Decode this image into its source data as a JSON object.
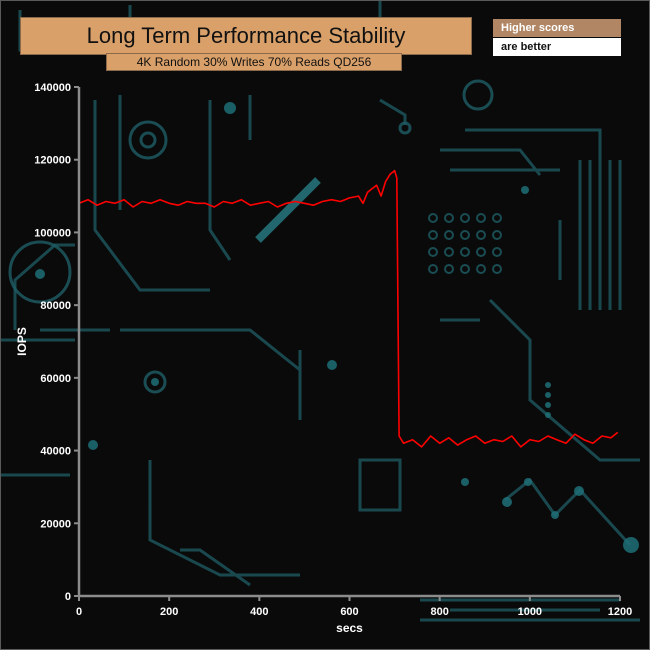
{
  "chart_data": {
    "type": "line",
    "title": "Long Term Performance Stability",
    "subtitle": "4K Random 30% Writes 70% Reads QD256",
    "xlabel": "secs",
    "ylabel": "IOPS",
    "xlim": [
      0,
      1200
    ],
    "ylim": [
      0,
      140000
    ],
    "x_ticks": [
      0,
      200,
      400,
      600,
      800,
      1000,
      1200
    ],
    "y_ticks": [
      0,
      20000,
      40000,
      60000,
      80000,
      100000,
      120000,
      140000
    ],
    "x_tick_labels": [
      "0",
      "200",
      "400",
      "600",
      "800",
      "1000",
      "1200"
    ],
    "y_tick_labels": [
      "0",
      "20000",
      "40000",
      "60000",
      "80000",
      "100000",
      "120000",
      "140000"
    ],
    "series": [
      {
        "color": "#ff0000",
        "x": [
          0,
          20,
          40,
          60,
          80,
          100,
          120,
          140,
          160,
          180,
          200,
          220,
          240,
          260,
          280,
          300,
          320,
          340,
          360,
          380,
          400,
          420,
          440,
          460,
          480,
          500,
          520,
          540,
          560,
          580,
          600,
          620,
          630,
          640,
          650,
          660,
          670,
          680,
          690,
          700,
          705,
          710,
          720,
          740,
          760,
          780,
          800,
          820,
          840,
          860,
          880,
          900,
          920,
          940,
          960,
          980,
          1000,
          1020,
          1040,
          1060,
          1080,
          1100,
          1120,
          1140,
          1160,
          1180,
          1195
        ],
        "values": [
          108000,
          109000,
          107500,
          108500,
          108000,
          109000,
          107000,
          108500,
          108000,
          109000,
          108000,
          107500,
          108500,
          108000,
          108000,
          107000,
          108500,
          108000,
          109000,
          107500,
          108000,
          108500,
          107000,
          108000,
          108500,
          108000,
          107500,
          108500,
          109000,
          108500,
          109500,
          110000,
          108000,
          111000,
          112000,
          113000,
          110000,
          114000,
          116000,
          117000,
          115000,
          44000,
          42000,
          43000,
          41000,
          44000,
          42000,
          43500,
          41500,
          43000,
          44000,
          42000,
          43000,
          42500,
          44000,
          41000,
          43000,
          42500,
          44000,
          43000,
          42000,
          44500,
          43000,
          42000,
          44000,
          43500,
          45000
        ]
      }
    ],
    "legend": [
      "Higher scores",
      "are better"
    ],
    "legend_placement": "top-right",
    "grid": false
  }
}
